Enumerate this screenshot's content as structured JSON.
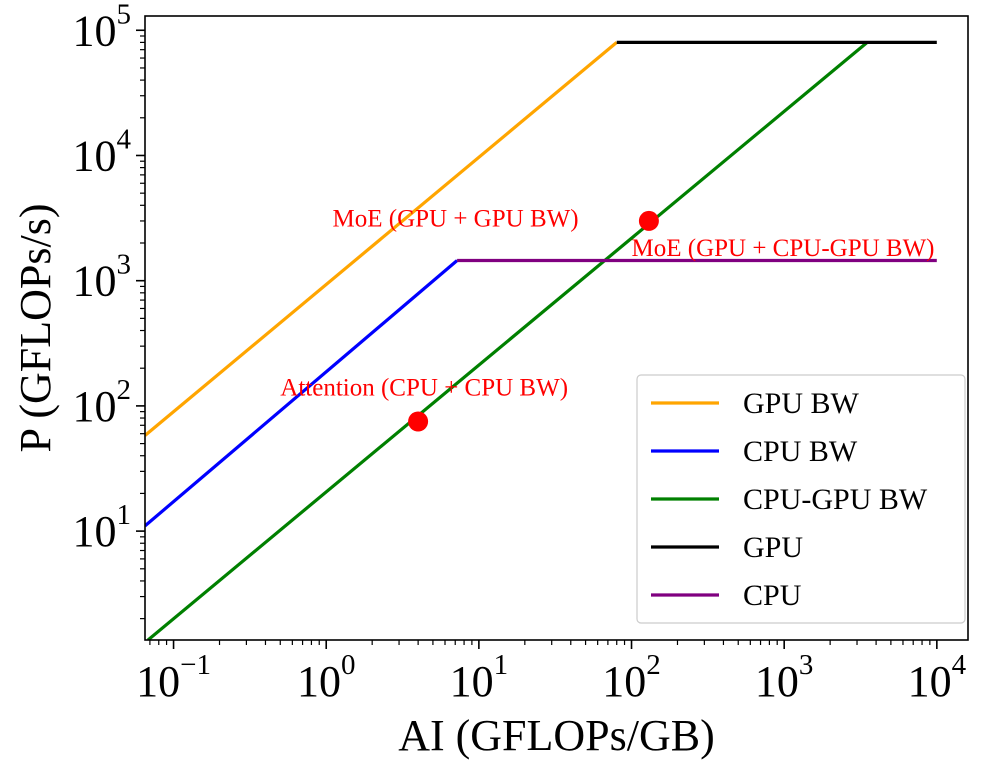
{
  "chart_data": {
    "type": "line",
    "title": "",
    "xlabel": "AI (GFLOPs/GB)",
    "ylabel": "P (GFLOPs/s)",
    "xscale": "log",
    "yscale": "log",
    "xlim": [
      0.065,
      16000
    ],
    "ylim": [
      1.35,
      130000
    ],
    "grid": false,
    "legend_position": "lower-right",
    "x_ticks": [
      {
        "exp": "−1",
        "value": 0.1
      },
      {
        "exp": "0",
        "value": 1
      },
      {
        "exp": "1",
        "value": 10
      },
      {
        "exp": "2",
        "value": 100
      },
      {
        "exp": "3",
        "value": 1000
      },
      {
        "exp": "4",
        "value": 10000
      }
    ],
    "y_ticks": [
      {
        "exp": "1",
        "value": 10
      },
      {
        "exp": "2",
        "value": 100
      },
      {
        "exp": "3",
        "value": 1000
      },
      {
        "exp": "4",
        "value": 10000
      },
      {
        "exp": "5",
        "value": 100000
      }
    ],
    "tick_base": "10",
    "series": [
      {
        "name": "GPU BW",
        "color": "#ffa500",
        "x": [
          0.065,
          80
        ],
        "y": [
          58,
          80000
        ]
      },
      {
        "name": "CPU BW",
        "color": "#0000ff",
        "x": [
          0.065,
          7.2
        ],
        "y": [
          11,
          1450
        ]
      },
      {
        "name": "CPU-GPU BW",
        "color": "#008000",
        "x": [
          0.068,
          3500
        ],
        "y": [
          1.35,
          80000
        ]
      },
      {
        "name": "GPU",
        "color": "#000000",
        "x": [
          80,
          10000
        ],
        "y": [
          80000,
          80000
        ]
      },
      {
        "name": "CPU",
        "color": "#800080",
        "x": [
          7.2,
          10000
        ],
        "y": [
          1450,
          1450
        ]
      }
    ],
    "points": [
      {
        "x": 130,
        "y": 3000,
        "color": "#ff0000"
      },
      {
        "x": 4,
        "y": 75,
        "color": "#ff0000"
      }
    ],
    "annotations": [
      {
        "text": "MoE (GPU + GPU BW)",
        "x": 1.1,
        "y": 3000
      },
      {
        "text": "MoE (GPU + CPU-GPU BW)",
        "x": 100,
        "y": 1750
      },
      {
        "text": "Attention (CPU + CPU BW)",
        "x": 0.5,
        "y": 135
      }
    ],
    "annotation_color": "#ff0000"
  }
}
